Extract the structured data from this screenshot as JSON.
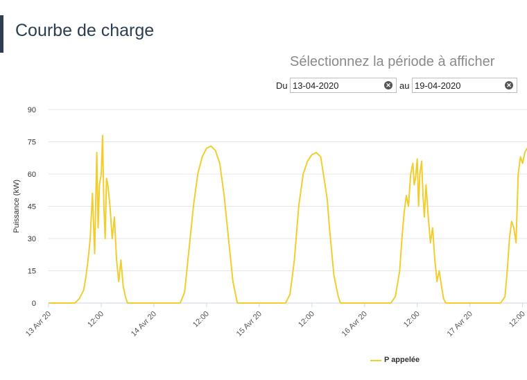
{
  "page": {
    "title": "Courbe de charge"
  },
  "period": {
    "heading": "Sélectionnez la période à afficher",
    "from_label": "Du",
    "from_value": "13-04-2020",
    "to_label": "au",
    "to_value": "19-04-2020",
    "clear_icon": "clear-icon"
  },
  "colors": {
    "series": "#f1cd2e",
    "grid": "#e6e6e6",
    "accent": "#2c3e50"
  },
  "chart_data": {
    "type": "line",
    "ylabel": "Puissance (kW)",
    "ylim": [
      0,
      90
    ],
    "yticks": [
      0,
      15,
      30,
      45,
      60,
      75,
      90
    ],
    "xlim": [
      0,
      109
    ],
    "xtick_positions": [
      0,
      12,
      24,
      36,
      48,
      60,
      72,
      84,
      96,
      108
    ],
    "xtick_labels": [
      "13 Avr 20",
      "12:00",
      "14 Avr 20",
      "12:00",
      "15 Avr 20",
      "12:00",
      "16 Avr 20",
      "12:00",
      "17 Avr 20",
      "12:00"
    ],
    "series": [
      {
        "name": "P appelée",
        "x": [
          0,
          6,
          7,
          7.5,
          8,
          8.5,
          9,
          9.5,
          10,
          10.5,
          11,
          11.3,
          11.6,
          12,
          12.3,
          12.6,
          12.9,
          13.2,
          13.5,
          14,
          14.5,
          15,
          15.5,
          16,
          16.5,
          17,
          17.5,
          18,
          18.5,
          19,
          19.5,
          20,
          21,
          24,
          30,
          31,
          32,
          33,
          34,
          35,
          36,
          37,
          38,
          39,
          40,
          41,
          42,
          43,
          48,
          54,
          55,
          56,
          57,
          58,
          59,
          60,
          61,
          62,
          63,
          63.5,
          64,
          65,
          66,
          66.5,
          67,
          72,
          78,
          79,
          80,
          80.5,
          81,
          81.5,
          82,
          82.5,
          83,
          83.3,
          83.6,
          84,
          84.3,
          84.6,
          85,
          85.3,
          85.6,
          86,
          86.5,
          87,
          87.5,
          88,
          88.5,
          89,
          89.5,
          90,
          90.5,
          91,
          96,
          102,
          103,
          104,
          104.5,
          105,
          105.5,
          106,
          106.5,
          107,
          107.5,
          108,
          108.5,
          109
        ],
        "values": [
          0,
          0,
          2,
          4,
          6,
          12,
          20,
          30,
          51,
          23,
          70,
          35,
          55,
          60,
          78,
          45,
          30,
          58,
          55,
          45,
          30,
          40,
          20,
          10,
          20,
          8,
          3,
          0,
          0,
          0,
          0,
          0,
          0,
          0,
          0,
          5,
          25,
          45,
          60,
          68,
          72,
          73,
          71,
          65,
          50,
          30,
          10,
          0,
          0,
          0,
          4,
          20,
          45,
          60,
          66,
          69,
          70,
          68,
          55,
          48,
          35,
          13,
          3,
          0,
          0,
          0,
          0,
          3,
          15,
          30,
          42,
          50,
          45,
          60,
          65,
          55,
          58,
          67,
          45,
          60,
          66,
          50,
          40,
          55,
          40,
          28,
          35,
          20,
          10,
          15,
          8,
          2,
          0,
          0,
          0,
          0,
          0,
          3,
          15,
          30,
          38,
          35,
          28,
          60,
          68,
          65,
          70,
          72
        ]
      }
    ],
    "legend": "bottom-center",
    "grid": true
  }
}
